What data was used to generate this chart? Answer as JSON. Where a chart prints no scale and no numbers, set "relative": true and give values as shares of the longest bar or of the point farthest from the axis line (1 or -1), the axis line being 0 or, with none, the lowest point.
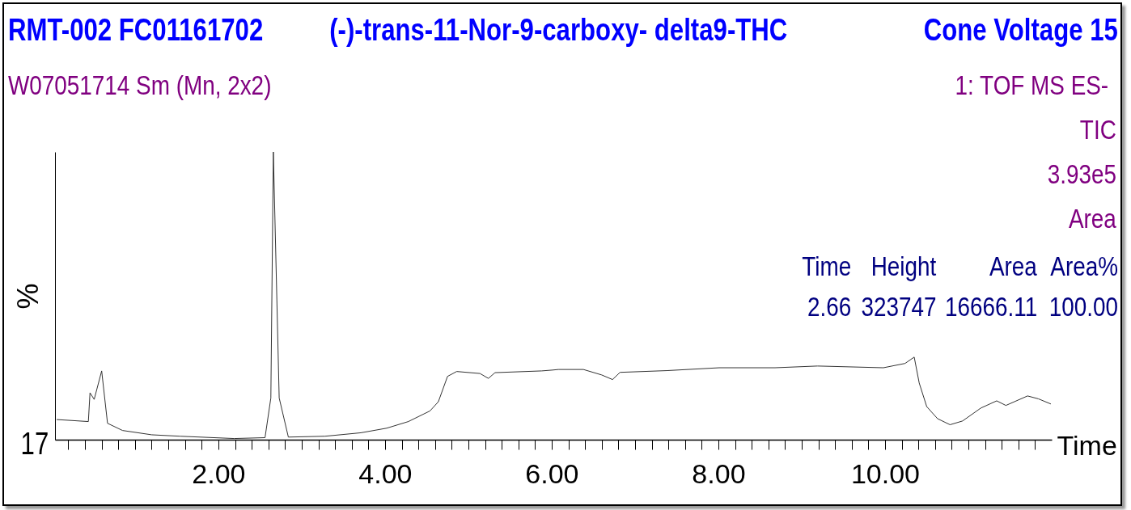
{
  "chart_data": {
    "type": "line",
    "title": "(-)-trans-11-Nor-9-carboxy- delta9-THC",
    "xlabel": "Time",
    "ylabel": "%",
    "relative": true,
    "color": "#333333",
    "marker": "none",
    "line_style": "solid",
    "grid": false,
    "annotations": [
      "RMT-002 FC01161702",
      "Cone Voltage 15",
      "W07051714 Sm (Mn, 2x2)",
      "1: TOF MS ES-",
      "TIC",
      "3.93e5",
      "Area",
      "Time",
      "Height",
      "Area",
      "Area%",
      "2.66",
      "323747",
      "16666.11",
      "100.00",
      "17"
    ],
    "xlim": [
      0.04,
      12.0
    ],
    "xticks": [
      {
        "value": 0.2,
        "label": null
      },
      {
        "value": 0.4,
        "label": null
      },
      {
        "value": 0.6,
        "label": null
      },
      {
        "value": 0.8,
        "label": null
      },
      {
        "value": 1,
        "label": null
      },
      {
        "value": 1.2,
        "label": null
      },
      {
        "value": 1.4,
        "label": null
      },
      {
        "value": 1.6,
        "label": null
      },
      {
        "value": 1.8,
        "label": null
      },
      {
        "value": 2,
        "label": "2.00"
      },
      {
        "value": 2.2,
        "label": null
      },
      {
        "value": 2.4,
        "label": null
      },
      {
        "value": 2.6,
        "label": null
      },
      {
        "value": 2.8,
        "label": null
      },
      {
        "value": 3,
        "label": null
      },
      {
        "value": 3.2,
        "label": null
      },
      {
        "value": 3.4,
        "label": null
      },
      {
        "value": 3.6,
        "label": null
      },
      {
        "value": 3.8,
        "label": null
      },
      {
        "value": 4,
        "label": "4.00"
      },
      {
        "value": 4.2,
        "label": null
      },
      {
        "value": 4.4,
        "label": null
      },
      {
        "value": 4.6,
        "label": null
      },
      {
        "value": 4.8,
        "label": null
      },
      {
        "value": 5,
        "label": null
      },
      {
        "value": 5.2,
        "label": null
      },
      {
        "value": 5.4,
        "label": null
      },
      {
        "value": 5.6,
        "label": null
      },
      {
        "value": 5.8,
        "label": null
      },
      {
        "value": 6,
        "label": "6.00"
      },
      {
        "value": 6.2,
        "label": null
      },
      {
        "value": 6.4,
        "label": null
      },
      {
        "value": 6.6,
        "label": null
      },
      {
        "value": 6.8,
        "label": null
      },
      {
        "value": 7,
        "label": null
      },
      {
        "value": 7.2,
        "label": null
      },
      {
        "value": 7.4,
        "label": null
      },
      {
        "value": 7.6,
        "label": null
      },
      {
        "value": 7.8,
        "label": null
      },
      {
        "value": 8,
        "label": "8.00"
      },
      {
        "value": 8.2,
        "label": null
      },
      {
        "value": 8.4,
        "label": null
      },
      {
        "value": 8.6,
        "label": null
      },
      {
        "value": 8.8,
        "label": null
      },
      {
        "value": 9,
        "label": null
      },
      {
        "value": 9.2,
        "label": null
      },
      {
        "value": 9.4,
        "label": null
      },
      {
        "value": 9.6,
        "label": null
      },
      {
        "value": 9.8,
        "label": null
      },
      {
        "value": 10,
        "label": "10.00"
      },
      {
        "value": 10.2,
        "label": null
      },
      {
        "value": 10.4,
        "label": null
      },
      {
        "value": 10.6,
        "label": null
      },
      {
        "value": 10.8,
        "label": null
      },
      {
        "value": 11,
        "label": null
      },
      {
        "value": 11.2,
        "label": null
      },
      {
        "value": 11.4,
        "label": null
      },
      {
        "value": 11.6,
        "label": null
      },
      {
        "value": 11.8,
        "label": null
      }
    ],
    "x": [
      0.06,
      0.44,
      0.46,
      0.51,
      0.6,
      0.67,
      0.85,
      1.2,
      1.54,
      2.19,
      2.56,
      2.63,
      2.66,
      2.73,
      2.84,
      3.28,
      3.71,
      4.02,
      4.28,
      4.54,
      4.64,
      4.75,
      4.86,
      5.14,
      5.24,
      5.32,
      5.88,
      6.01,
      6.08,
      6.38,
      6.6,
      6.73,
      6.82,
      7.38,
      8.01,
      8.68,
      9.19,
      9.98,
      10.24,
      10.35,
      10.41,
      10.5,
      10.63,
      10.78,
      10.93,
      11.15,
      11.34,
      11.45,
      11.71,
      11.84,
      11.99
    ],
    "values": [
      0.07,
      0.063,
      0.163,
      0.14,
      0.239,
      0.057,
      0.032,
      0.017,
      0.012,
      0.004,
      0.007,
      0.145,
      1.0,
      0.145,
      0.009,
      0.012,
      0.024,
      0.04,
      0.063,
      0.1,
      0.132,
      0.22,
      0.237,
      0.23,
      0.213,
      0.233,
      0.239,
      0.242,
      0.244,
      0.244,
      0.225,
      0.209,
      0.234,
      0.24,
      0.25,
      0.25,
      0.256,
      0.25,
      0.265,
      0.287,
      0.197,
      0.115,
      0.073,
      0.052,
      0.065,
      0.11,
      0.135,
      0.119,
      0.152,
      0.142,
      0.124
    ]
  }
}
